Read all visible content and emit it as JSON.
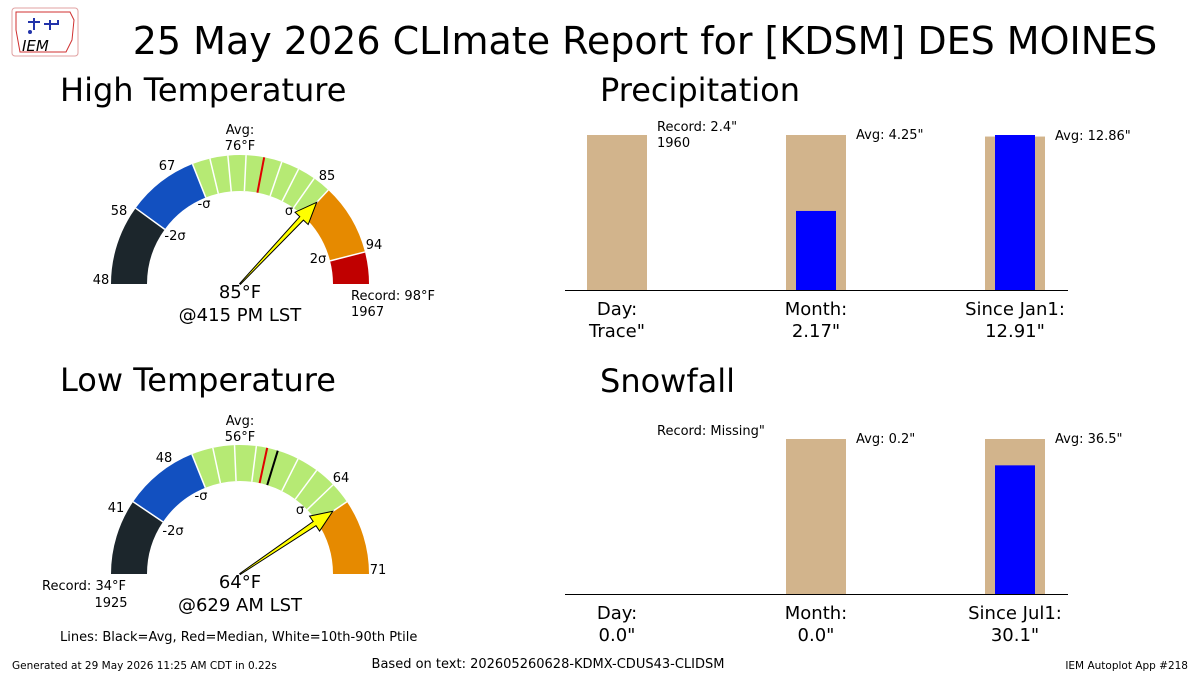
{
  "page": {
    "title": "25 May 2026 CLImate Report for [KDSM] DES MOINES",
    "logo_text": "IEM",
    "legend_note": "Lines: Black=Avg, Red=Median, White=10th-90th Ptile",
    "footer_left": "Generated at 29 May 2026 11:25 AM CDT in 0.22s",
    "footer_center": "Based on text: 202605260628-KDMX-CDUS43-CLIDSM",
    "footer_right": "IEM Autoplot App #218"
  },
  "colors": {
    "dark": "#1c262c",
    "blue": "#1250c0",
    "green": "#b6ea74",
    "orange": "#e68a00",
    "red": "#c00000",
    "avg_bar": "#d2b48c",
    "obs_bar": "#0000ff",
    "needle": "#ffff00"
  },
  "chart_data": [
    {
      "type": "gauge",
      "title": "High Temperature",
      "range": [
        48,
        98
      ],
      "bands": [
        {
          "from": 48,
          "to": 58,
          "color": "dark"
        },
        {
          "from": 58,
          "to": 67,
          "color": "blue"
        },
        {
          "from": 67,
          "to": 85,
          "color": "green"
        },
        {
          "from": 85,
          "to": 94,
          "color": "orange"
        },
        {
          "from": 94,
          "to": 98,
          "color": "red"
        }
      ],
      "tick_labels": [
        "48",
        "58",
        "67",
        "85",
        "94"
      ],
      "sigma_labels": [
        "-2σ",
        "-σ",
        "σ",
        "2σ"
      ],
      "avg_label": "Avg:",
      "avg_value_label": "76°F",
      "avg": 76,
      "median": 76,
      "observed": 85,
      "observed_label": "85°F",
      "time_label": "@415 PM LST",
      "record_label": "Record: 98°F",
      "record_year": "1967"
    },
    {
      "type": "gauge",
      "title": "Low Temperature",
      "range": [
        34,
        71
      ],
      "bands": [
        {
          "from": 34,
          "to": 41,
          "color": "dark"
        },
        {
          "from": 41,
          "to": 48,
          "color": "blue"
        },
        {
          "from": 48,
          "to": 64,
          "color": "green"
        },
        {
          "from": 64,
          "to": 71,
          "color": "orange"
        }
      ],
      "tick_labels": [
        "41",
        "48",
        "64",
        "71"
      ],
      "sigma_labels": [
        "-2σ",
        "-σ",
        "σ"
      ],
      "avg_label": "Avg:",
      "avg_value_label": "56°F",
      "avg": 56,
      "median": 55,
      "observed": 64,
      "observed_label": "64°F",
      "time_label": "@629 AM LST",
      "record_label": "Record: 34°F",
      "record_year": "1925"
    },
    {
      "type": "bar",
      "title": "Precipitation",
      "categories": [
        {
          "label": "Day:",
          "value_label": "Trace\""
        },
        {
          "label": "Month:",
          "value_label": "2.17\""
        },
        {
          "label": "Since Jan1:",
          "value_label": "12.91\""
        }
      ],
      "normalized_avg": [
        1.0,
        1.0,
        0.99
      ],
      "normalized_obs": [
        0.0,
        0.51,
        1.0
      ],
      "annotations": [
        "Record: 2.4\"\n1960",
        "Avg: 4.25\"",
        "Avg: 12.86\""
      ]
    },
    {
      "type": "bar",
      "title": "Snowfall",
      "categories": [
        {
          "label": "Day:",
          "value_label": "0.0\""
        },
        {
          "label": "Month:",
          "value_label": "0.0\""
        },
        {
          "label": "Since Jul1:",
          "value_label": "30.1\""
        }
      ],
      "normalized_avg": [
        0.0,
        1.0,
        1.0
      ],
      "normalized_obs": [
        0.0,
        0.0,
        0.83
      ],
      "annotations": [
        "Record: Missing\"",
        "Avg: 0.2\"",
        "Avg: 36.5\""
      ]
    }
  ]
}
